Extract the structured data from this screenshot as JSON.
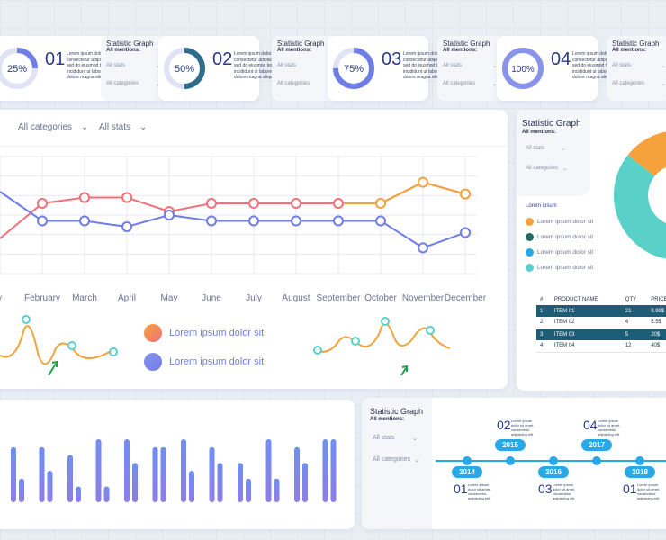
{
  "colors": {
    "accent_blue": "#29a8e8",
    "indigo": "#6f7de8",
    "coral": "#f07179",
    "orange": "#f5a23c",
    "teal": "#59d0c8",
    "dark_teal": "#1e5d78"
  },
  "stat_cards": [
    {
      "percent": "25%",
      "fraction": 0.25,
      "num": "01",
      "desc": "Lorem ipsum dolor sit amet, consectetur adipiscing elit, sed do eiusmod tempor incididunt ut labore et dolore magna aliqua."
    },
    {
      "percent": "50%",
      "fraction": 0.5,
      "num": "02",
      "desc": "Lorem ipsum dolor sit amet, consectetur adipiscing elit, sed do eiusmod tempor incididunt ut labore et dolore magna aliqua."
    },
    {
      "percent": "75%",
      "fraction": 0.75,
      "num": "03",
      "desc": "Lorem ipsum dolor sit amet, consectetur adipiscing elit, sed do eiusmod tempor incididunt ut labore et dolore magna aliqua."
    },
    {
      "percent": "100%",
      "fraction": 1.0,
      "num": "04",
      "desc": "Lorem ipsum dolor sit amet, consectetur adipiscing elit, sed do eiusmod tempor incididunt ut labore et dolore magna aliqua."
    }
  ],
  "mini_panels": [
    {
      "title": "Statistic Graph",
      "subtitle": "All mentions:",
      "dd1": "All stats",
      "dd2": "All categories"
    },
    {
      "title": "Statistic Graph",
      "subtitle": "All mentions:",
      "dd1": "All stats",
      "dd2": "All categories"
    },
    {
      "title": "Statistic Graph",
      "subtitle": "All mentions:",
      "dd1": "All stats",
      "dd2": "All categories"
    },
    {
      "title": "Statistic Graph",
      "subtitle": "All mentions:",
      "dd1": "All stats",
      "dd2": "All categories"
    }
  ],
  "main_chart": {
    "filter_categories": "All categories",
    "filter_stats": "All stats",
    "legend": [
      {
        "label": "Lorem ipsum dolor sit"
      },
      {
        "label": "Lorem ipsum dolor sit"
      }
    ]
  },
  "chart_data": [
    {
      "type": "line",
      "categories": [
        "January",
        "February",
        "March",
        "April",
        "May",
        "June",
        "July",
        "August",
        "September",
        "October",
        "November",
        "December"
      ],
      "category_labels": [
        "ry",
        "February",
        "March",
        "April",
        "May",
        "June",
        "July",
        "August",
        "September",
        "October",
        "November",
        "December"
      ],
      "ylim": [
        0,
        10
      ],
      "series": [
        {
          "values": [
            3.0,
            6.0,
            6.5,
            6.5,
            5.3,
            6.0,
            6.0,
            6.0,
            6.0,
            6.0,
            7.8,
            6.8
          ]
        },
        {
          "values": [
            7.0,
            4.5,
            4.5,
            4.0,
            5.0,
            4.5,
            4.5,
            4.5,
            4.5,
            4.5,
            2.2,
            3.5
          ]
        }
      ],
      "grid": true
    },
    {
      "type": "pie",
      "title": "Statistic Graph",
      "subtitle": "All mentions:",
      "values": [
        20,
        10,
        12,
        58
      ],
      "legend_title": "Lorem ipsum",
      "legend": [
        "Lorem ipsum dolor sit",
        "Lorem ipsum dolor sit",
        "Lorem ipsum dolor sit",
        "Lorem ipsum dolor sit"
      ]
    },
    {
      "type": "bar",
      "series": [
        {
          "values": [
            7,
            7,
            6,
            8,
            8,
            7,
            8,
            7,
            5,
            8,
            7,
            8
          ]
        },
        {
          "values": [
            3,
            4,
            2,
            2,
            5,
            7,
            4,
            5,
            3,
            3,
            5,
            8
          ]
        }
      ],
      "ylim": [
        0,
        8
      ]
    }
  ],
  "pie_panel": {
    "dd1": "All stats",
    "dd2": "All categories"
  },
  "table": {
    "headers": [
      "#",
      "PRODUCT NAME",
      "QTY",
      "PRICE"
    ],
    "rows": [
      {
        "n": "1",
        "name": "ITEM 01",
        "qty": "21",
        "price": "9.99$"
      },
      {
        "n": "2",
        "name": "ITEM 02",
        "qty": "4",
        "price": "5.5$"
      },
      {
        "n": "3",
        "name": "ITEM 03",
        "qty": "5",
        "price": "20$"
      },
      {
        "n": "4",
        "name": "ITEM 04",
        "qty": "12",
        "price": "40$"
      }
    ]
  },
  "timeline_panel": {
    "title": "Statistic Graph",
    "subtitle": "All mentions:",
    "dd1": "All stats",
    "dd2": "All categories",
    "years": [
      "2014",
      "2015",
      "2016",
      "2017",
      "2018"
    ],
    "items": [
      {
        "num": "01",
        "desc": "Lorem ipsum dolor sit amet, consectetur adipiscing elit."
      },
      {
        "num": "02",
        "desc": "Lorem ipsum dolor sit amet, consectetur adipiscing elit."
      },
      {
        "num": "03",
        "desc": "Lorem ipsum dolor sit amet, consectetur adipiscing elit."
      },
      {
        "num": "04",
        "desc": "Lorem ipsum dolor sit amet, consectetur adipiscing elit."
      },
      {
        "num": "01",
        "desc": "Lorem ipsum dolor sit amet, consectetur adipiscing elit."
      }
    ]
  }
}
